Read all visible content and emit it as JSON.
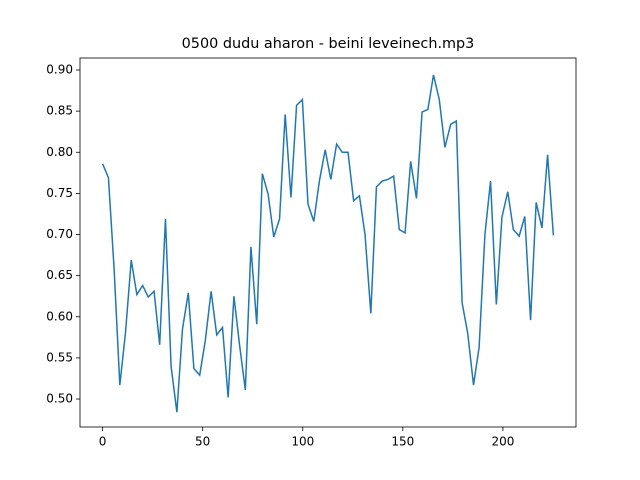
{
  "chart_data": {
    "type": "line",
    "title": "0500 dudu aharon - beini leveinech.mp3",
    "x": [
      0,
      2.9,
      5.7,
      8.6,
      11.4,
      14.3,
      17.1,
      20,
      22.8,
      25.7,
      28.5,
      31.4,
      34.2,
      37.1,
      39.9,
      42.8,
      45.6,
      48.5,
      51.3,
      54.2,
      57,
      59.9,
      62.7,
      65.6,
      68.4,
      71.3,
      74.1,
      77,
      79.8,
      82.7,
      85.5,
      88.4,
      91.2,
      94.1,
      96.9,
      99.8,
      102.6,
      105.5,
      108.3,
      111.2,
      114,
      116.9,
      119.7,
      122.6,
      125.4,
      128.3,
      131.1,
      134,
      136.8,
      139.7,
      142.5,
      145.4,
      148.2,
      151.1,
      153.9,
      156.8,
      159.6,
      162.5,
      165.3,
      168.2,
      171,
      173.9,
      176.7,
      179.6,
      182.4,
      185.3,
      188.1,
      191,
      193.8,
      196.7,
      199.5,
      202.4,
      205.2,
      208.1,
      210.9,
      213.8,
      216.6,
      219.5,
      222.3,
      225.2
    ],
    "series": [
      {
        "color": "#1f77b4",
        "values": [
          0.786,
          0.769,
          0.66,
          0.517,
          0.58,
          0.669,
          0.627,
          0.638,
          0.624,
          0.631,
          0.566,
          0.719,
          0.54,
          0.484,
          0.585,
          0.629,
          0.537,
          0.529,
          0.571,
          0.631,
          0.578,
          0.587,
          0.502,
          0.625,
          0.566,
          0.511,
          0.685,
          0.591,
          0.774,
          0.749,
          0.697,
          0.719,
          0.846,
          0.745,
          0.857,
          0.864,
          0.737,
          0.716,
          0.765,
          0.803,
          0.767,
          0.81,
          0.8,
          0.8,
          0.741,
          0.747,
          0.7,
          0.604,
          0.758,
          0.765,
          0.767,
          0.771,
          0.706,
          0.702,
          0.789,
          0.744,
          0.849,
          0.852,
          0.894,
          0.864,
          0.806,
          0.834,
          0.838,
          0.617,
          0.58,
          0.517,
          0.563,
          0.7,
          0.765,
          0.615,
          0.721,
          0.752,
          0.706,
          0.698,
          0.722,
          0.596,
          0.739,
          0.708,
          0.797,
          0.699
        ]
      }
    ],
    "xlim": [
      -11.3,
      236.5
    ],
    "ylim": [
      0.466,
      0.9146
    ],
    "xticks": [
      0,
      50,
      100,
      150,
      200
    ],
    "yticks": [
      {
        "value": 0.5,
        "label": "0.50"
      },
      {
        "value": 0.55,
        "label": "0.55"
      },
      {
        "value": 0.6,
        "label": "0.60"
      },
      {
        "value": 0.65,
        "label": "0.65"
      },
      {
        "value": 0.7,
        "label": "0.70"
      },
      {
        "value": 0.75,
        "label": "0.75"
      },
      {
        "value": 0.8,
        "label": "0.80"
      },
      {
        "value": 0.85,
        "label": "0.85"
      },
      {
        "value": 0.9,
        "label": "0.90"
      }
    ]
  }
}
